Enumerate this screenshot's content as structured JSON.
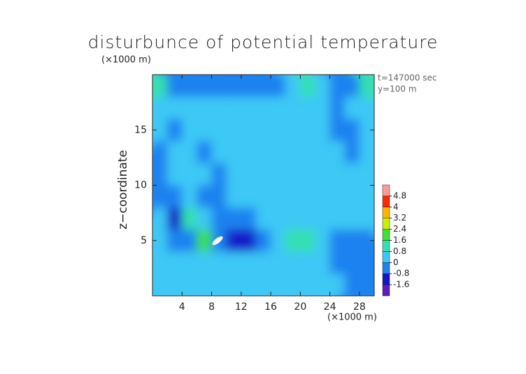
{
  "chart_data": {
    "type": "heatmap",
    "title": "disturbunce of potential temperature",
    "y_unit_label": "(×1000 m)",
    "x_unit_label": "(×1000 m)",
    "annotations": [
      "t=147000 sec",
      "y=100 m"
    ],
    "ylabel": "z−coordinate",
    "xlim": [
      0,
      30
    ],
    "ylim": [
      0,
      20
    ],
    "xticks": [
      4,
      8,
      12,
      16,
      20,
      24,
      28
    ],
    "yticks": [
      5,
      10,
      15
    ],
    "x": [
      1,
      3,
      5,
      7,
      9,
      11,
      13,
      15,
      17,
      19,
      21,
      23,
      25,
      27,
      29
    ],
    "y": [
      1,
      3,
      5,
      7,
      9,
      11,
      13,
      15,
      17,
      19
    ],
    "z": [
      [
        0.3,
        0.3,
        0.3,
        0.3,
        0.2,
        0.2,
        0.3,
        0.3,
        0.3,
        0.2,
        0.2,
        0.2,
        0.3,
        -0.3,
        -0.5
      ],
      [
        0.3,
        0.3,
        0.2,
        0.3,
        0.3,
        0.2,
        0.3,
        0.3,
        0.4,
        0.4,
        0.3,
        0.2,
        -0.2,
        -0.4,
        -0.3
      ],
      [
        0.2,
        -0.6,
        -0.3,
        1.8,
        -0.4,
        -1.5,
        -0.9,
        -0.3,
        0.3,
        0.9,
        0.9,
        0.4,
        -0.5,
        -0.7,
        -0.6
      ],
      [
        0.3,
        -0.9,
        0.8,
        0.5,
        -0.3,
        -0.6,
        -0.3,
        0.2,
        0.3,
        0.3,
        0.2,
        0.1,
        0.2,
        0.3,
        0.3
      ],
      [
        -0.4,
        -0.5,
        0.4,
        -0.3,
        -0.2,
        0.3,
        0.3,
        0.4,
        0.4,
        0.3,
        0.3,
        0.3,
        0.3,
        0.2,
        0.3
      ],
      [
        -0.3,
        0.3,
        0.4,
        0.3,
        -0.2,
        0.3,
        0.4,
        0.4,
        0.4,
        0.3,
        0.2,
        0.2,
        0.3,
        0.3,
        0.3
      ],
      [
        -0.2,
        0.4,
        0.3,
        -0.2,
        0.3,
        0.3,
        0.3,
        0.4,
        0.5,
        0.5,
        0.4,
        0.3,
        0.2,
        -0.3,
        0.3
      ],
      [
        0.2,
        -0.3,
        0.3,
        0.4,
        0.3,
        0.3,
        0.3,
        0.5,
        0.5,
        0.5,
        0.4,
        0.2,
        -0.2,
        -0.3,
        0.2
      ],
      [
        0.3,
        0.2,
        0.3,
        0.4,
        0.3,
        0.2,
        0.3,
        0.2,
        0.2,
        0.3,
        0.3,
        0.2,
        -0.3,
        0.3,
        0.3
      ],
      [
        1.0,
        -0.5,
        -0.8,
        -0.6,
        -0.4,
        -0.3,
        -0.4,
        -0.3,
        -0.2,
        0.3,
        1.0,
        0.3,
        -0.3,
        -0.3,
        1.0
      ]
    ],
    "levels": [
      -1.6,
      -0.8,
      0,
      0.8,
      1.6,
      2.4,
      3.2,
      4,
      4.8
    ],
    "colors": [
      "#5a1fb8",
      "#1414c8",
      "#1e82f0",
      "#3cc8f5",
      "#34e0b0",
      "#3ee03a",
      "#c8f000",
      "#ffb400",
      "#ff2a00",
      "#ff9a9a"
    ]
  }
}
